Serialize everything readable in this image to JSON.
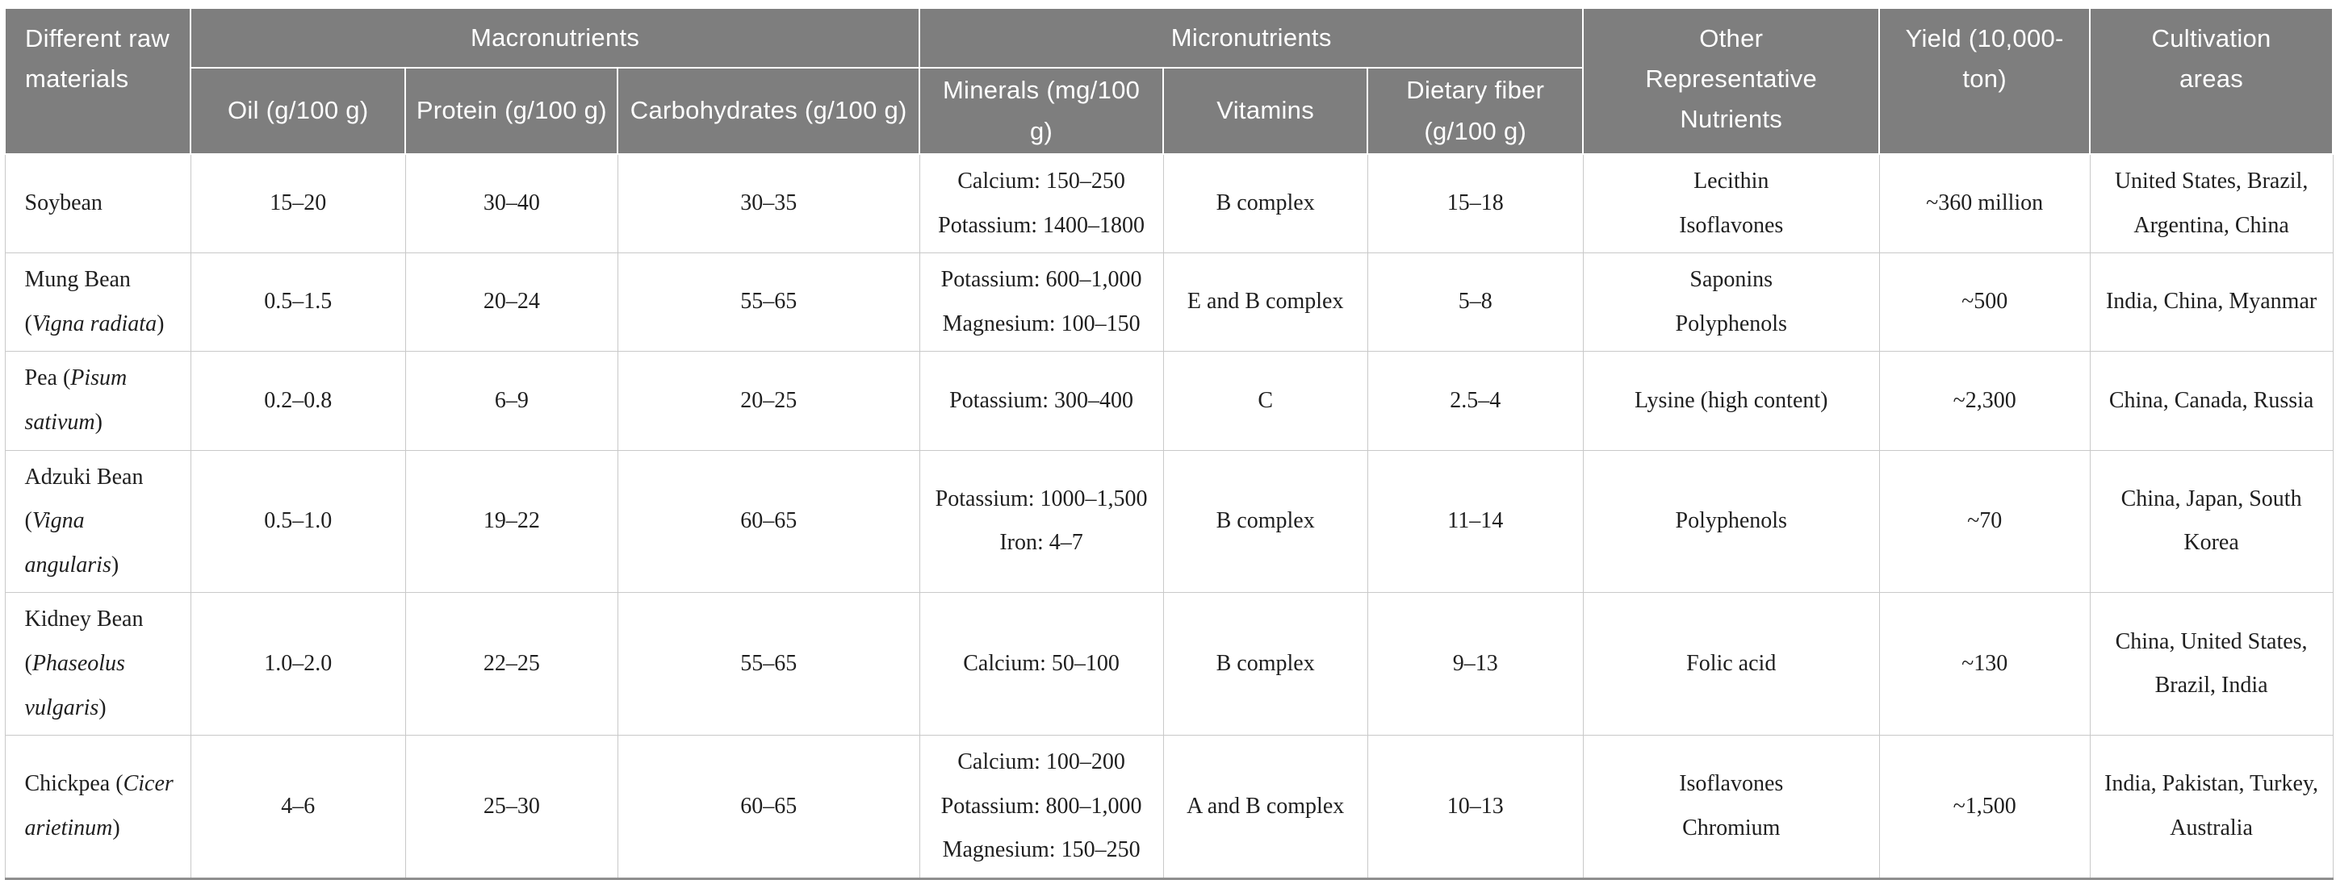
{
  "table": {
    "header": {
      "raw_materials": "Different raw materials",
      "group_macronutrients": "Macronutrients",
      "group_micronutrients": "Micronutrients",
      "oil": "Oil (g/100 g)",
      "protein": "Protein (g/100 g)",
      "carbohydrates": "Carbohydrates (g/100 g)",
      "minerals": "Minerals (mg/100 g)",
      "vitamins": "Vitamins",
      "dietary_fiber": "Dietary fiber (g/100 g)",
      "other_nutrients": "Other Representative Nutrients",
      "yield": "Yield (10,000-ton)",
      "cultivation_areas": "Cultivation areas"
    },
    "rows": [
      {
        "name_common": "Soybean",
        "name_latin": "",
        "oil": "15–20",
        "protein": "30–40",
        "carbohydrates": "30–35",
        "minerals": [
          "Calcium: 150–250",
          "Potassium: 1400–1800"
        ],
        "vitamins": "B complex",
        "fiber": "15–18",
        "other": [
          "Lecithin",
          "Isoflavones"
        ],
        "yield": "~360 million",
        "areas": "United States, Brazil, Argentina, China"
      },
      {
        "name_common": "Mung Bean",
        "name_latin": "Vigna radiata",
        "oil": "0.5–1.5",
        "protein": "20–24",
        "carbohydrates": "55–65",
        "minerals": [
          "Potassium: 600–1,000",
          "Magnesium: 100–150"
        ],
        "vitamins": "E and B complex",
        "fiber": "5–8",
        "other": [
          "Saponins",
          "Polyphenols"
        ],
        "yield": "~500",
        "areas": "India, China, Myanmar"
      },
      {
        "name_common": "Pea",
        "name_latin": "Pisum sativum",
        "oil": "0.2–0.8",
        "protein": "6–9",
        "carbohydrates": "20–25",
        "minerals": [
          "Potassium: 300–400"
        ],
        "vitamins": "C",
        "fiber": "2.5–4",
        "other": [
          "Lysine (high content)"
        ],
        "yield": "~2,300",
        "areas": "China, Canada, Russia"
      },
      {
        "name_common": "Adzuki Bean",
        "name_latin": "Vigna angularis",
        "oil": "0.5–1.0",
        "protein": "19–22",
        "carbohydrates": "60–65",
        "minerals": [
          "Potassium: 1000–1,500",
          "Iron: 4–7"
        ],
        "vitamins": "B complex",
        "fiber": "11–14",
        "other": [
          "Polyphenols"
        ],
        "yield": "~70",
        "areas": "China, Japan, South Korea"
      },
      {
        "name_common": "Kidney Bean",
        "name_latin": "Phaseolus vulgaris",
        "oil": "1.0–2.0",
        "protein": "22–25",
        "carbohydrates": "55–65",
        "minerals": [
          "Calcium: 50–100"
        ],
        "vitamins": "B complex",
        "fiber": "9–13",
        "other": [
          "Folic acid"
        ],
        "yield": "~130",
        "areas": "China, United States, Brazil, India"
      },
      {
        "name_common": "Chickpea",
        "name_latin": "Cicer arietinum",
        "oil": "4–6",
        "protein": "25–30",
        "carbohydrates": "60–65",
        "minerals": [
          "Calcium: 100–200",
          "Potassium: 800–1,000",
          "Magnesium: 150–250"
        ],
        "vitamins": "A and B complex",
        "fiber": "10–13",
        "other": [
          "Isoflavones",
          "Chromium"
        ],
        "yield": "~1,500",
        "areas": "India, Pakistan, Turkey, Australia"
      }
    ],
    "colors": {
      "header_bg": "#7e7e7e",
      "header_text": "#ffffff",
      "body_text": "#1f1f1f",
      "grid_line": "#c9c9c9",
      "bottom_border": "#8f8f8f"
    }
  }
}
